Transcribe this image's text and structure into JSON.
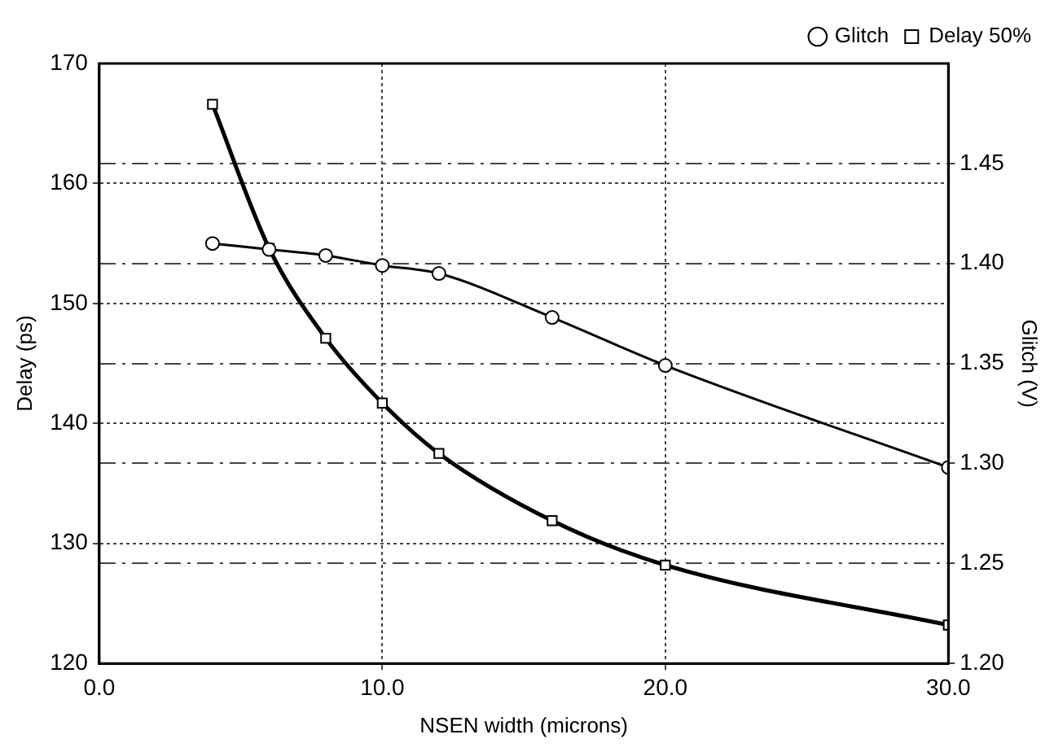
{
  "chart_data": {
    "type": "line",
    "xlabel": "NSEN width (microns)",
    "ylabel": "Delay (ps)",
    "y2label": "Glitch (V)",
    "x": [
      4,
      6,
      8,
      10,
      12,
      16,
      20,
      30
    ],
    "series": [
      {
        "name": "Delay 50%",
        "color": "#000000",
        "marker": "square",
        "values": [
          166.6,
          154.6,
          147.1,
          141.7,
          137.5,
          131.9,
          128.2,
          123.2
        ]
      },
      {
        "name": "Glitch",
        "color": "#000000",
        "marker": "circle",
        "axis": "y2",
        "values": [
          1.41,
          1.407,
          1.404,
          1.399,
          1.395,
          1.373,
          1.349,
          1.298
        ]
      }
    ],
    "xlim": [
      0,
      30
    ],
    "xticks": [
      {
        "value": 0,
        "label": "0.0"
      },
      {
        "value": 10,
        "label": "10.0"
      },
      {
        "value": 20,
        "label": "20.0"
      },
      {
        "value": 30,
        "label": "30.0"
      }
    ],
    "ylim": [
      120,
      170
    ],
    "yticks": [
      120,
      130,
      140,
      150,
      160,
      170
    ],
    "y2lim": [
      1.2,
      1.5
    ],
    "y2ticks": [
      {
        "value": 1.2,
        "label": "1.20"
      },
      {
        "value": 1.25,
        "label": "1.25"
      },
      {
        "value": 1.3,
        "label": "1.30"
      },
      {
        "value": 1.35,
        "label": "1.35"
      },
      {
        "value": 1.4,
        "label": "1.40"
      },
      {
        "value": 1.45,
        "label": "1.45"
      }
    ],
    "grid": true,
    "legend": "top right",
    "line_style": "solid"
  }
}
